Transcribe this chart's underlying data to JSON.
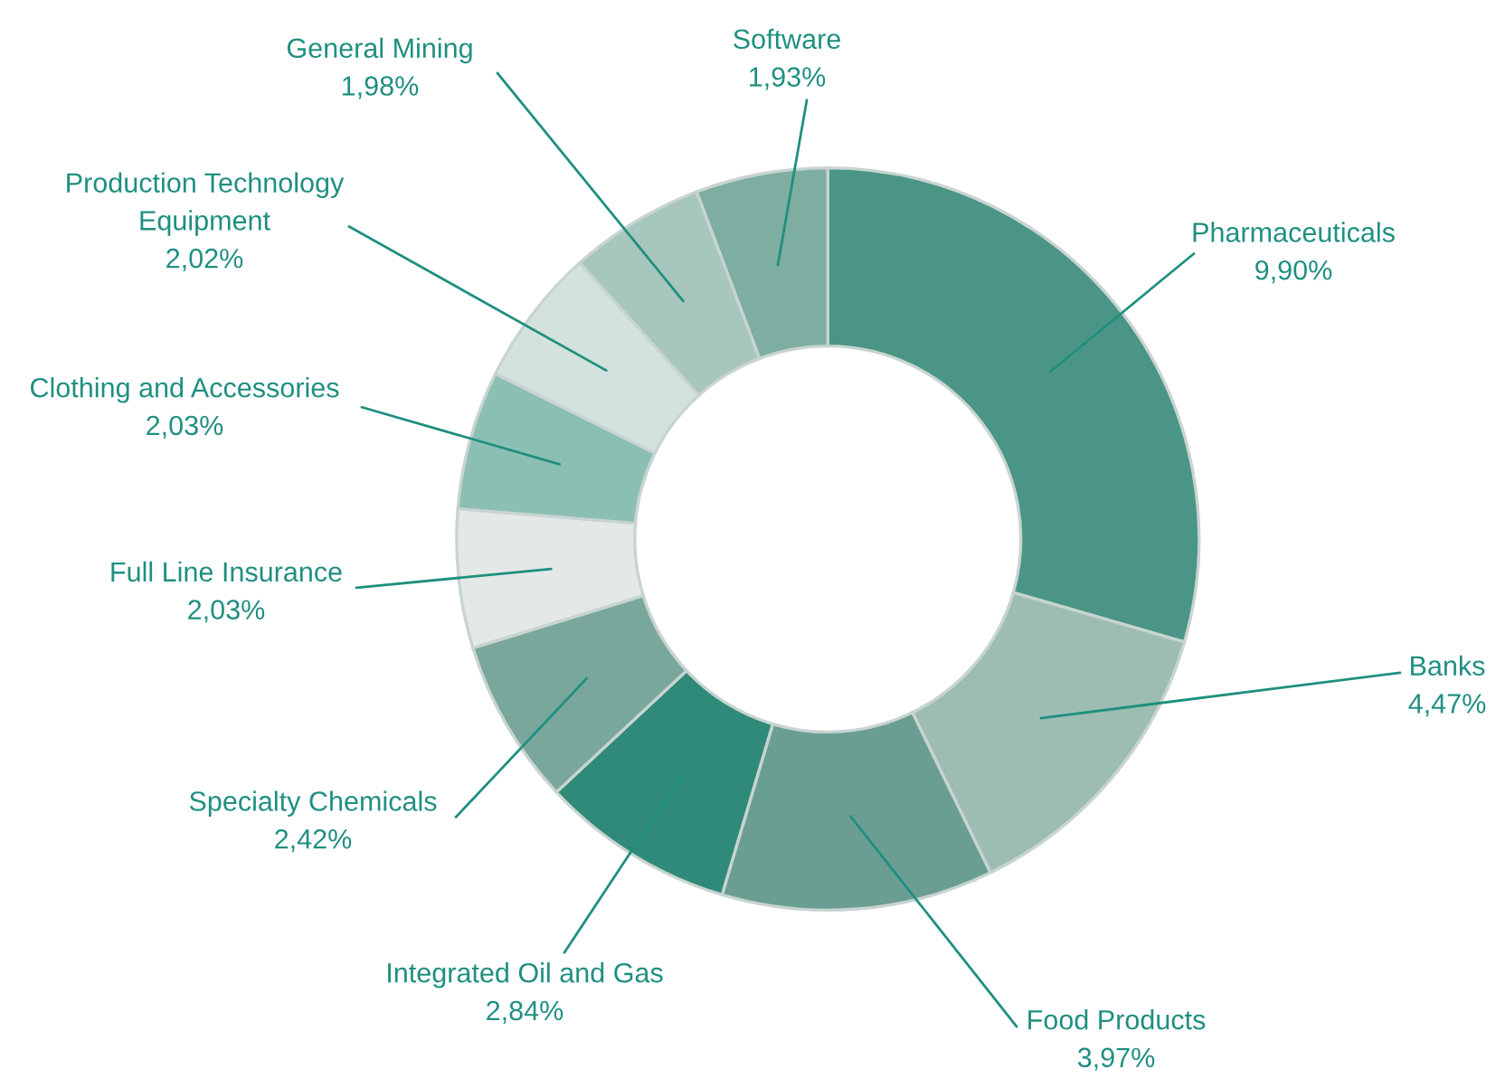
{
  "chart_data": {
    "type": "donut",
    "categories": [
      "Pharmaceuticals",
      "Banks",
      "Food Products",
      "Integrated Oil and Gas",
      "Specialty Chemicals",
      "Full Line Insurance",
      "Clothing and Accessories",
      "Production Technology\nEquipment",
      "General Mining",
      "Software"
    ],
    "values": [
      9.9,
      4.47,
      3.97,
      2.84,
      2.42,
      2.03,
      2.03,
      2.02,
      1.98,
      1.93
    ],
    "value_labels": [
      "9,90%",
      "4,47%",
      "3,97%",
      "2,84%",
      "2,42%",
      "2,03%",
      "2,03%",
      "2,02%",
      "1,98%",
      "1,93%"
    ],
    "colors": [
      "#4a9585",
      "#9dbdb3",
      "#6b9e92",
      "#2f8a7a",
      "#7aa79c",
      "#e4e8e6",
      "#8cbfb3",
      "#d4e2dd",
      "#a6c6be",
      "#7eaea2"
    ],
    "legend": false
  }
}
